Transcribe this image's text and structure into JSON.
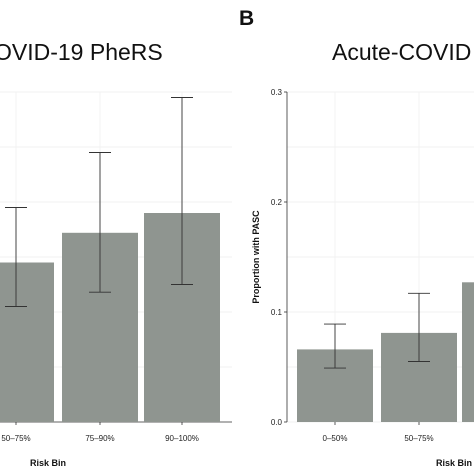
{
  "chart_data": [
    {
      "panel_label": "",
      "type": "bar",
      "title": "OVID-19 PheRS",
      "xlabel": "Risk Bin",
      "ylabel": "",
      "ylim": [
        0,
        0.3
      ],
      "yticks": [],
      "categories": [
        "50–75%",
        "75–90%",
        "90–100%"
      ],
      "values": [
        0.145,
        0.172,
        0.19
      ],
      "err_low": [
        0.105,
        0.118,
        0.125
      ],
      "err_high": [
        0.195,
        0.245,
        0.295
      ],
      "grid": true
    },
    {
      "panel_label": "B",
      "type": "bar",
      "title": "Acute-COVID",
      "xlabel": "Risk Bin",
      "ylabel": "Proportion with PASC",
      "ylim": [
        0,
        0.3
      ],
      "yticks": [
        "0.0",
        "0.1",
        "0.2",
        "0.3"
      ],
      "ytick_values": [
        0.0,
        0.1,
        0.2,
        0.3
      ],
      "categories": [
        "0–50%",
        "50–75%",
        ""
      ],
      "values": [
        0.066,
        0.081,
        0.127
      ],
      "err_low": [
        0.049,
        0.055,
        null
      ],
      "err_high": [
        0.089,
        0.117,
        null
      ],
      "grid": true
    }
  ]
}
